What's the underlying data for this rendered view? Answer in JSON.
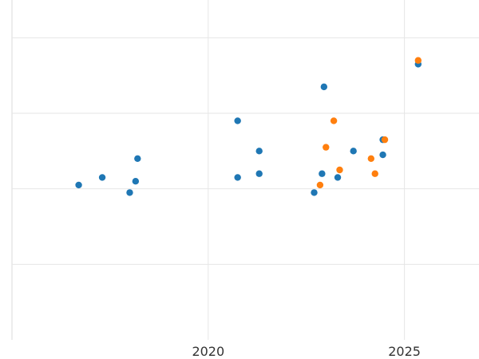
{
  "chart_data": {
    "type": "scatter",
    "title": "",
    "xlabel": "",
    "ylabel": "",
    "xlim": [
      2015,
      2026.9
    ],
    "ylim": [
      0,
      0.9
    ],
    "grid": true,
    "x_ticks": [
      {
        "value": 2020,
        "label": "2020"
      },
      {
        "value": 2025,
        "label": "2025"
      }
    ],
    "y_gridlines": [
      0.2,
      0.4,
      0.6,
      0.8
    ],
    "series": [
      {
        "color": "#1f77b4",
        "points": [
          {
            "x": 2016.7,
            "y": 0.41
          },
          {
            "x": 2017.3,
            "y": 0.43
          },
          {
            "x": 2018.0,
            "y": 0.39
          },
          {
            "x": 2018.15,
            "y": 0.42
          },
          {
            "x": 2018.2,
            "y": 0.48
          },
          {
            "x": 2020.75,
            "y": 0.58
          },
          {
            "x": 2020.75,
            "y": 0.43
          },
          {
            "x": 2021.3,
            "y": 0.5
          },
          {
            "x": 2021.3,
            "y": 0.44
          },
          {
            "x": 2022.7,
            "y": 0.39
          },
          {
            "x": 2022.9,
            "y": 0.44
          },
          {
            "x": 2022.95,
            "y": 0.67
          },
          {
            "x": 2023.3,
            "y": 0.43
          },
          {
            "x": 2023.7,
            "y": 0.5
          },
          {
            "x": 2024.45,
            "y": 0.49
          },
          {
            "x": 2024.45,
            "y": 0.53
          },
          {
            "x": 2025.35,
            "y": 0.73
          }
        ]
      },
      {
        "color": "#ff7f0e",
        "points": [
          {
            "x": 2022.85,
            "y": 0.41
          },
          {
            "x": 2023.0,
            "y": 0.51
          },
          {
            "x": 2023.2,
            "y": 0.58
          },
          {
            "x": 2023.35,
            "y": 0.45
          },
          {
            "x": 2024.15,
            "y": 0.48
          },
          {
            "x": 2024.25,
            "y": 0.44
          },
          {
            "x": 2024.5,
            "y": 0.53
          },
          {
            "x": 2025.35,
            "y": 0.74
          }
        ]
      }
    ]
  }
}
